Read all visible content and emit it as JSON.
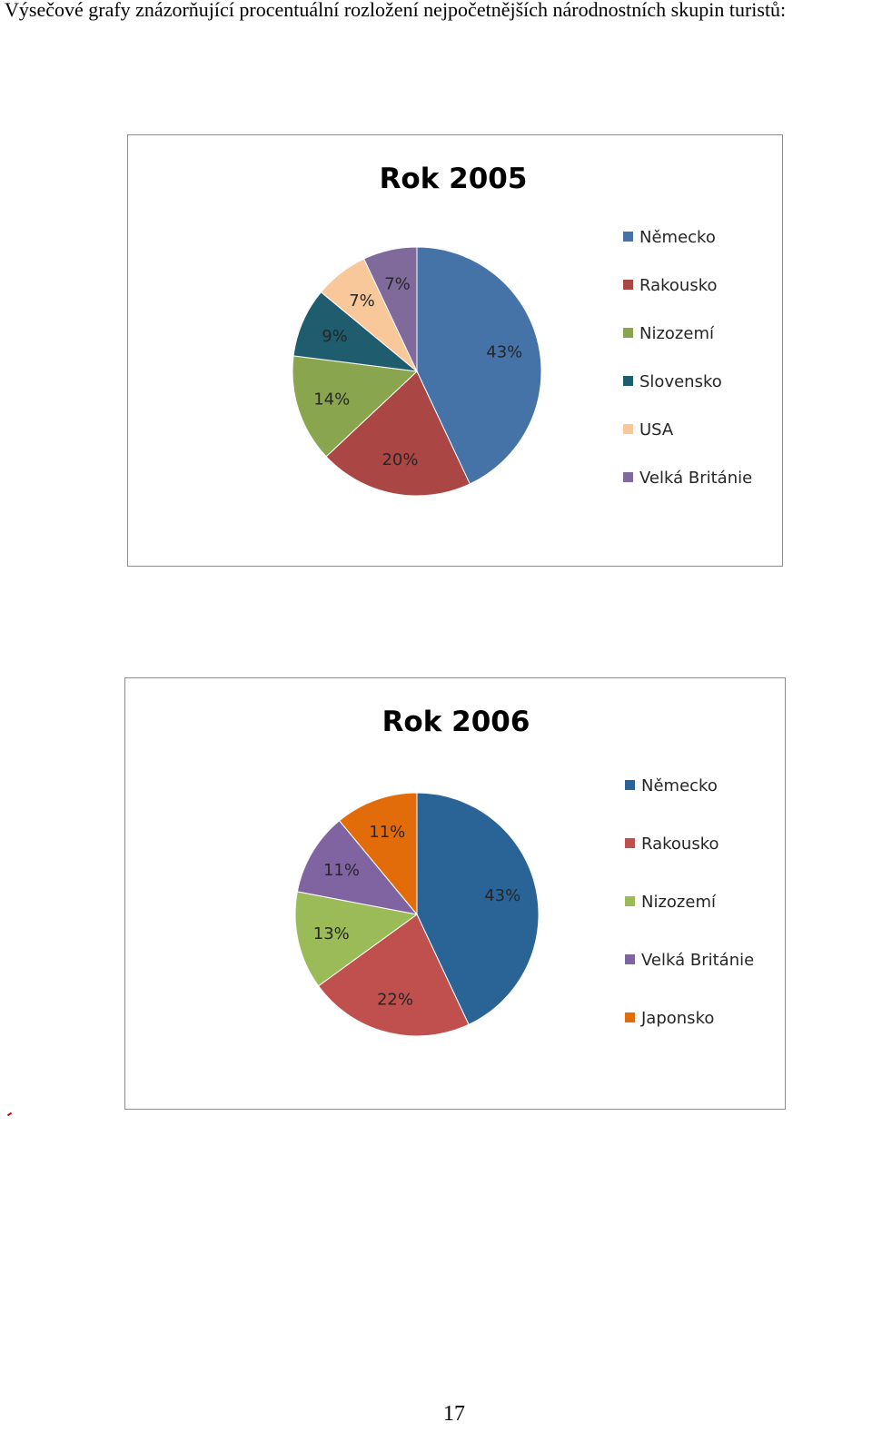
{
  "document": {
    "intro_text": "Výsečové grafy znázorňující procentuální rozložení nejpočetnějších národnostních skupin turistů:",
    "page_number": "17"
  },
  "chart_data": [
    {
      "type": "pie",
      "title": "Rok 2005",
      "labels": [
        "Německo",
        "Rakousko",
        "Nizozemí",
        "Slovensko",
        "USA",
        "Velká Británie"
      ],
      "values": [
        43,
        20,
        14,
        9,
        7,
        7
      ],
      "value_labels": [
        "43%",
        "20%",
        "14%",
        "9%",
        "7%",
        "7%"
      ],
      "colors": [
        "#4572a7",
        "#aa4643",
        "#89a54e",
        "#1f5c6e",
        "#f8c79a",
        "#80699b"
      ],
      "legend_position": "right"
    },
    {
      "type": "pie",
      "title": "Rok 2006",
      "labels": [
        "Německo",
        "Rakousko",
        "Nizozemí",
        "Velká Británie",
        "Japonsko"
      ],
      "values": [
        43,
        22,
        13,
        11,
        11
      ],
      "value_labels": [
        "43%",
        "22%",
        "13%",
        "11%",
        "11%"
      ],
      "colors": [
        "#2a6496",
        "#c0504d",
        "#9bbb59",
        "#8064a2",
        "#e36c0a"
      ],
      "legend_position": "right"
    }
  ]
}
